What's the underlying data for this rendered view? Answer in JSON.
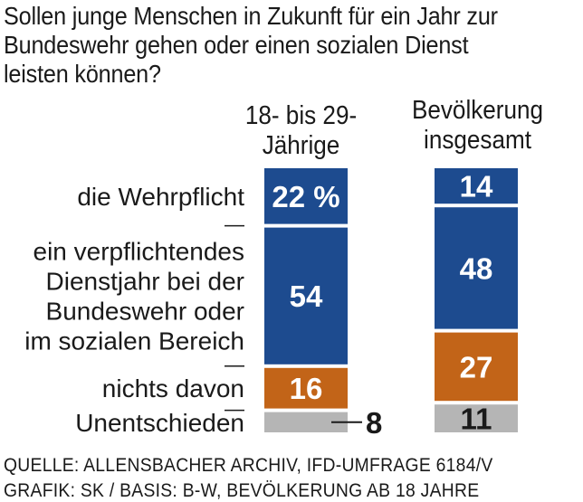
{
  "title": "Sollen junge Menschen in Zukunft für ein Jahr zur Bundeswehr gehen oder einen sozialen Dienst leisten können?",
  "source_line1": "QUELLE: ALLENSBACHER ARCHIV, IFD-UMFRAGE 6184/V",
  "source_line2": "GRAFIK: SK / BASIS: B-W, BEVÖLKERUNG AB 18 JAHRE",
  "colors": {
    "blue": "#1d4b8f",
    "orange": "#c26418",
    "gray": "#b5b5b5",
    "text": "#1a1a1a"
  },
  "chart_data": {
    "type": "bar",
    "stacked": true,
    "unit": "%",
    "categories": [
      "18- bis 29-Jährige",
      "Bevölkerung insgesamt"
    ],
    "columns": [
      {
        "header_line1": "18- bis 29-",
        "header_line2": "Jährige"
      },
      {
        "header_line1": "Bevölkerung",
        "header_line2": "insgesamt"
      }
    ],
    "series": [
      {
        "name": "die Wehrpflicht",
        "label_lines": [
          "die Wehrpflicht"
        ],
        "color": "#1d4b8f",
        "values": [
          22,
          14
        ],
        "value_labels": [
          "22 %",
          "14"
        ]
      },
      {
        "name": "ein verpflichtendes Dienstjahr bei der Bundeswehr oder im sozialen Bereich",
        "label_lines": [
          "ein verpflichtendes",
          "Dienstjahr bei der",
          "Bundeswehr oder",
          "im sozialen Bereich"
        ],
        "color": "#1d4b8f",
        "values": [
          54,
          48
        ],
        "value_labels": [
          "54",
          "48"
        ]
      },
      {
        "name": "nichts davon",
        "label_lines": [
          "nichts davon"
        ],
        "color": "#c26418",
        "values": [
          16,
          27
        ],
        "value_labels": [
          "16",
          "27"
        ]
      },
      {
        "name": "Unentschieden",
        "label_lines": [
          "Unentschieden"
        ],
        "color": "#b5b5b5",
        "values": [
          8,
          11
        ],
        "value_labels": [
          "8",
          "11"
        ]
      }
    ]
  }
}
